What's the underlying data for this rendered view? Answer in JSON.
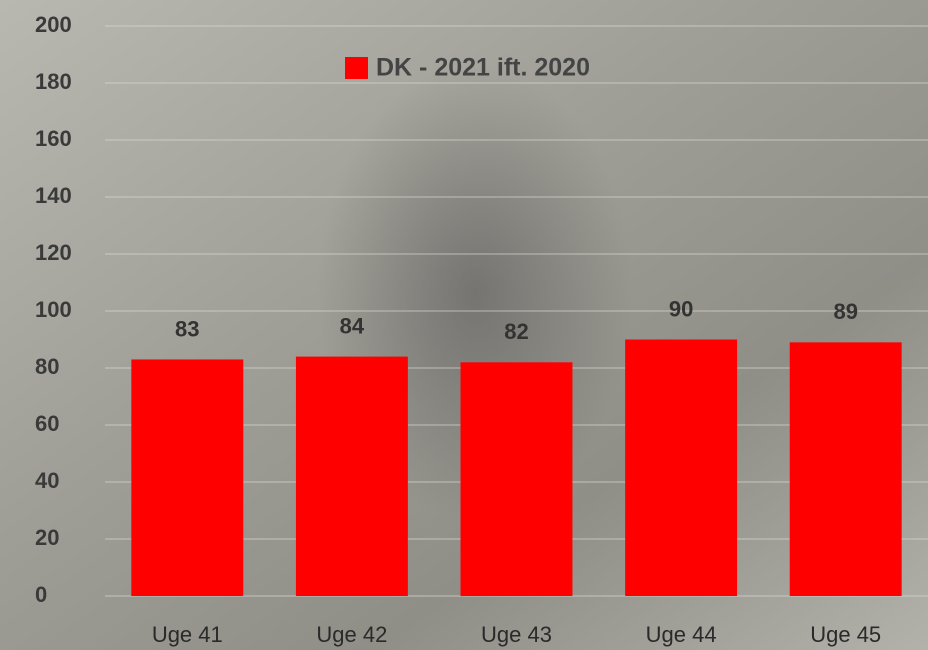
{
  "chart_data": {
    "type": "bar",
    "categories": [
      "Uge 41",
      "Uge 42",
      "Uge 43",
      "Uge 44",
      "Uge 45"
    ],
    "series": [
      {
        "name": "DK - 2021 ift. 2020",
        "color": "#ff0000",
        "values": [
          83,
          84,
          82,
          90,
          89
        ]
      }
    ],
    "ylim": [
      0,
      200
    ],
    "yticks": [
      0,
      20,
      40,
      60,
      80,
      100,
      120,
      140,
      160,
      180,
      200
    ],
    "grid": true,
    "legend": "top"
  }
}
